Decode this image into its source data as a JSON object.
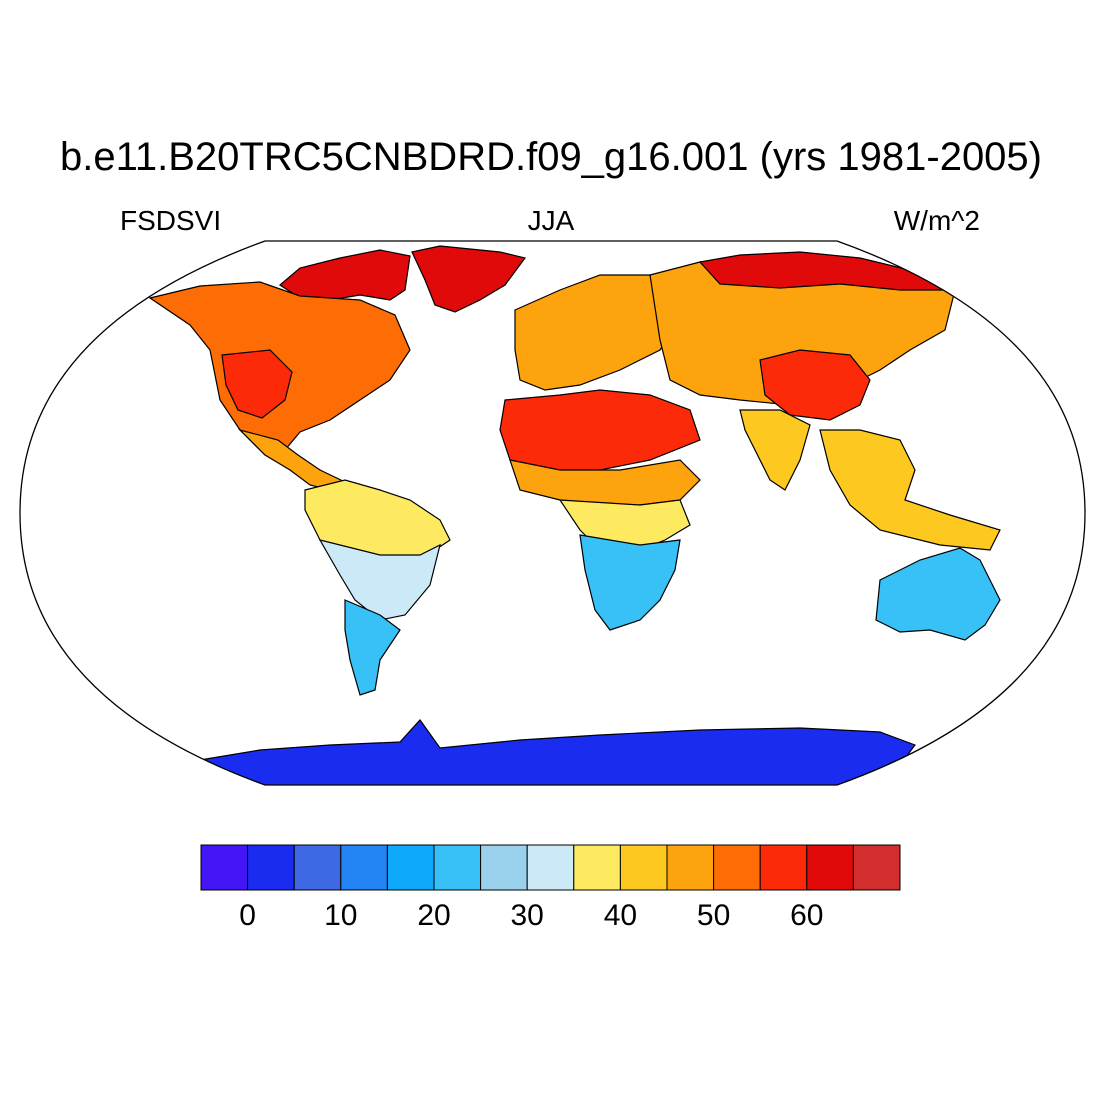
{
  "title": "b.e11.B20TRC5CNBDRD.f09_g16.001 (yrs 1981-2005)",
  "left_label": "FSDSVI",
  "center_label": "JJA",
  "right_label": "W/m^2",
  "colorbar": {
    "colors": [
      "#4415f5",
      "#1a2cf0",
      "#3f68e4",
      "#2384f4",
      "#0ea9fb",
      "#37c1f7",
      "#9ad2ee",
      "#cce9f7",
      "#fdea60",
      "#fdc81f",
      "#fda30e",
      "#fd6c05",
      "#fd2a0a",
      "#e00a0a",
      "#d32e2e"
    ],
    "tick_labels": [
      "0",
      "10",
      "20",
      "30",
      "40",
      "50",
      "60"
    ],
    "tick_values": [
      0,
      10,
      20,
      30,
      40,
      50,
      60
    ],
    "level_start": -5,
    "level_step": 5
  },
  "map_regions": [
    {
      "name": "Greenland",
      "value": 62
    },
    {
      "name": "Canadian Arctic",
      "value": 62
    },
    {
      "name": "North America",
      "value": 50
    },
    {
      "name": "Southwest US",
      "value": 55
    },
    {
      "name": "Central America",
      "value": 45
    },
    {
      "name": "Amazon",
      "value": 38
    },
    {
      "name": "Southern Brazil",
      "value": 32
    },
    {
      "name": "Patagonia",
      "value": 22
    },
    {
      "name": "Sahara",
      "value": 58
    },
    {
      "name": "Sahel",
      "value": 45
    },
    {
      "name": "Central Africa",
      "value": 38
    },
    {
      "name": "Southern Africa",
      "value": 24
    },
    {
      "name": "Europe",
      "value": 45
    },
    {
      "name": "Siberia",
      "value": 45
    },
    {
      "name": "Arctic Siberia",
      "value": 62
    },
    {
      "name": "Tibetan Plateau",
      "value": 55
    },
    {
      "name": "South Asia",
      "value": 42
    },
    {
      "name": "Southeast Asia",
      "value": 42
    },
    {
      "name": "Australia",
      "value": 24
    },
    {
      "name": "Antarctica",
      "value": 2
    }
  ]
}
